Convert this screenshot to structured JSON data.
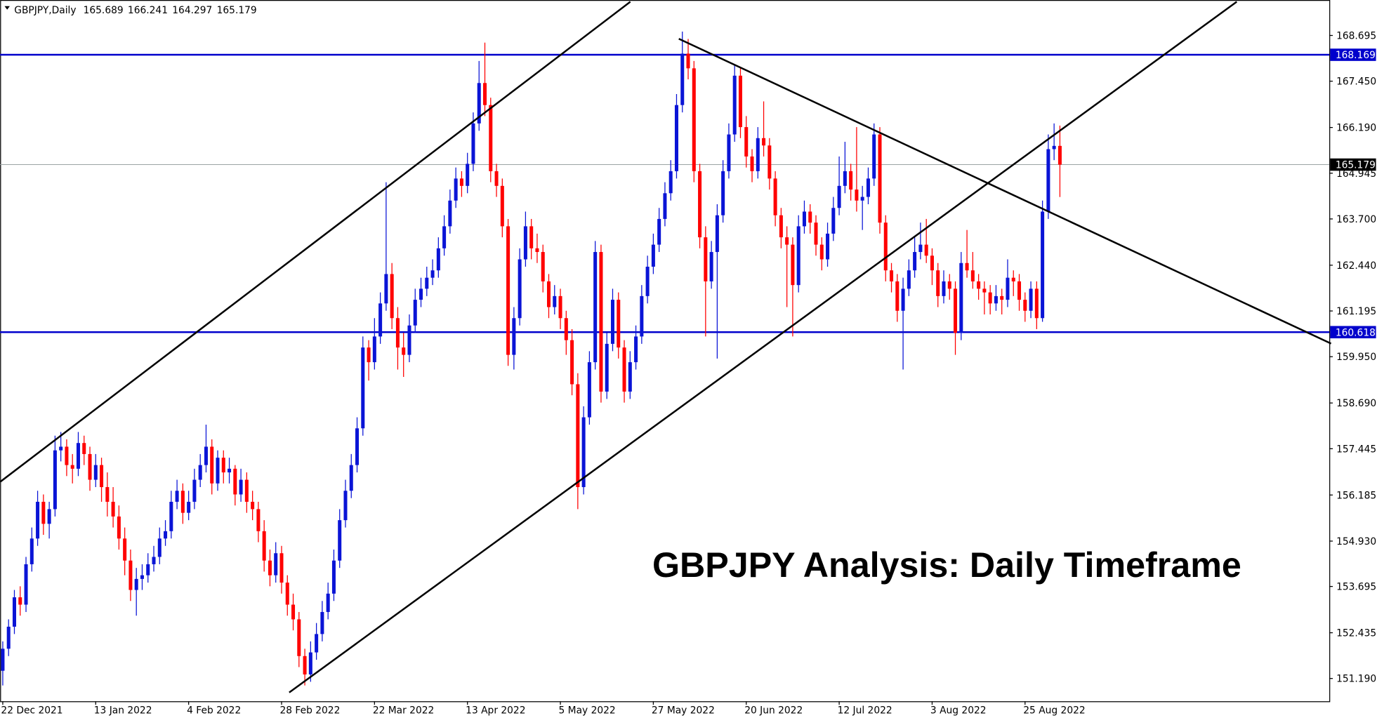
{
  "chart_data": {
    "type": "candlestick",
    "symbol": "GBPJPY,Daily",
    "annotation": "GBPJPY Analysis: Daily Timeframe",
    "up_color": "#0a14d6",
    "down_color": "#ff0000",
    "ylim": [
      150.57,
      169.66
    ],
    "yticks": [
      168.695,
      {
        "value": 167.45,
        "label": "167.450"
      },
      {
        "value": 166.19,
        "label": "166.190"
      },
      164.945,
      {
        "value": 163.7,
        "label": "163.700"
      },
      {
        "value": 162.44,
        "label": "162.440"
      },
      161.195,
      {
        "value": 159.95,
        "label": "159.950"
      },
      {
        "value": 158.69,
        "label": "158.690"
      },
      157.445,
      156.185,
      {
        "value": 154.93,
        "label": "154.930"
      },
      153.695,
      152.435,
      {
        "value": 151.19,
        "label": "151.190"
      }
    ],
    "levels": [
      {
        "value": 168.169,
        "color": "#0000cc"
      },
      {
        "value": 160.618,
        "color": "#0000cc"
      }
    ],
    "categories": [
      "22 Dec 2021",
      null,
      null,
      null,
      null,
      null,
      null,
      null,
      null,
      null,
      null,
      null,
      null,
      null,
      null,
      null,
      "13 Jan 2022",
      null,
      null,
      null,
      null,
      null,
      null,
      null,
      null,
      null,
      null,
      null,
      null,
      null,
      null,
      null,
      "4 Feb 2022",
      null,
      null,
      null,
      null,
      null,
      null,
      null,
      null,
      null,
      null,
      null,
      null,
      null,
      null,
      null,
      "28 Feb 2022",
      null,
      null,
      null,
      null,
      null,
      null,
      null,
      null,
      null,
      null,
      null,
      null,
      null,
      null,
      null,
      "22 Mar 2022",
      null,
      null,
      null,
      null,
      null,
      null,
      null,
      null,
      null,
      null,
      null,
      null,
      null,
      null,
      null,
      "13 Apr 2022",
      null,
      null,
      null,
      null,
      null,
      null,
      null,
      null,
      null,
      null,
      null,
      null,
      null,
      null,
      null,
      "5 May 2022",
      null,
      null,
      null,
      null,
      null,
      null,
      null,
      null,
      null,
      null,
      null,
      null,
      null,
      null,
      null,
      "27 May 2022",
      null,
      null,
      null,
      null,
      null,
      null,
      null,
      null,
      null,
      null,
      null,
      null,
      null,
      null,
      null,
      "20 Jun 2022",
      null,
      null,
      null,
      null,
      null,
      null,
      null,
      null,
      null,
      null,
      null,
      null,
      null,
      null,
      null,
      "12 Jul 2022",
      null,
      null,
      null,
      null,
      null,
      null,
      null,
      null,
      null,
      null,
      null,
      null,
      null,
      null,
      null,
      "3 Aug 2022",
      null,
      null,
      null,
      null,
      null,
      null,
      null,
      null,
      null,
      null,
      null,
      null,
      null,
      null,
      null,
      "25 Aug 2022",
      null,
      null,
      null,
      null,
      null,
      null
    ],
    "ohlc": [
      [
        151.4,
        152.2,
        151.0,
        152.0
      ],
      [
        152.0,
        152.8,
        151.8,
        152.6
      ],
      [
        152.6,
        153.6,
        152.4,
        153.4
      ],
      [
        153.4,
        153.7,
        152.9,
        153.2
      ],
      [
        153.2,
        154.5,
        153.0,
        154.3
      ],
      [
        154.3,
        155.3,
        154.1,
        155.0
      ],
      [
        155.0,
        156.3,
        154.8,
        156.0
      ],
      [
        156.0,
        156.2,
        155.1,
        155.4
      ],
      [
        155.4,
        156.0,
        155.0,
        155.8
      ],
      [
        155.8,
        157.8,
        155.6,
        157.4
      ],
      [
        157.4,
        157.9,
        157.1,
        157.5
      ],
      [
        157.5,
        157.7,
        156.7,
        157.0
      ],
      [
        157.0,
        157.3,
        156.5,
        156.9
      ],
      [
        156.9,
        157.9,
        156.7,
        157.6
      ],
      [
        157.6,
        157.8,
        157.0,
        157.3
      ],
      [
        157.3,
        157.5,
        156.3,
        156.6
      ],
      [
        156.6,
        157.3,
        156.4,
        157.0
      ],
      [
        157.0,
        157.2,
        156.0,
        156.4
      ],
      [
        156.4,
        156.8,
        155.6,
        156.0
      ],
      [
        156.0,
        156.4,
        155.3,
        155.6
      ],
      [
        155.6,
        155.9,
        154.7,
        155.0
      ],
      [
        155.0,
        155.3,
        154.0,
        154.4
      ],
      [
        154.4,
        154.7,
        153.3,
        153.6
      ],
      [
        153.6,
        154.2,
        152.9,
        153.9
      ],
      [
        153.9,
        154.3,
        153.6,
        154.0
      ],
      [
        154.0,
        154.6,
        153.8,
        154.3
      ],
      [
        154.3,
        154.8,
        154.1,
        154.5
      ],
      [
        154.5,
        155.3,
        154.3,
        155.0
      ],
      [
        155.0,
        155.5,
        154.8,
        155.2
      ],
      [
        155.2,
        156.3,
        155.0,
        156.0
      ],
      [
        156.0,
        156.6,
        155.8,
        156.3
      ],
      [
        156.3,
        156.5,
        155.4,
        155.7
      ],
      [
        155.7,
        156.3,
        155.5,
        156.0
      ],
      [
        156.0,
        156.9,
        155.8,
        156.6
      ],
      [
        156.6,
        157.3,
        156.4,
        157.0
      ],
      [
        157.0,
        158.1,
        156.8,
        157.5
      ],
      [
        157.5,
        157.7,
        156.2,
        156.5
      ],
      [
        156.5,
        157.4,
        156.3,
        157.2
      ],
      [
        157.2,
        157.4,
        156.5,
        156.8
      ],
      [
        156.8,
        157.2,
        156.5,
        156.9
      ],
      [
        156.9,
        157.0,
        155.9,
        156.2
      ],
      [
        156.2,
        156.9,
        156.0,
        156.6
      ],
      [
        156.6,
        156.8,
        155.7,
        156.0
      ],
      [
        156.0,
        156.3,
        155.5,
        155.8
      ],
      [
        155.8,
        156.0,
        154.9,
        155.2
      ],
      [
        155.2,
        155.5,
        154.1,
        154.4
      ],
      [
        154.4,
        154.7,
        153.7,
        154.0
      ],
      [
        154.0,
        154.9,
        153.8,
        154.6
      ],
      [
        154.6,
        154.8,
        153.5,
        153.8
      ],
      [
        153.8,
        154.0,
        152.9,
        153.2
      ],
      [
        153.2,
        153.5,
        152.5,
        152.8
      ],
      [
        152.8,
        153.0,
        151.5,
        151.8
      ],
      [
        151.8,
        152.0,
        151.0,
        151.3
      ],
      [
        151.3,
        152.2,
        151.1,
        151.9
      ],
      [
        151.9,
        152.7,
        151.7,
        152.4
      ],
      [
        152.4,
        153.3,
        152.2,
        153.0
      ],
      [
        153.0,
        153.8,
        152.8,
        153.5
      ],
      [
        153.5,
        154.7,
        153.3,
        154.4
      ],
      [
        154.4,
        155.8,
        154.2,
        155.5
      ],
      [
        155.5,
        156.6,
        155.3,
        156.3
      ],
      [
        156.3,
        157.3,
        156.1,
        157.0
      ],
      [
        157.0,
        158.3,
        156.8,
        158.0
      ],
      [
        158.0,
        160.5,
        157.8,
        160.2
      ],
      [
        160.2,
        160.4,
        159.3,
        159.8
      ],
      [
        159.8,
        161.0,
        159.6,
        160.5
      ],
      [
        160.5,
        161.7,
        160.3,
        161.4
      ],
      [
        161.4,
        164.7,
        161.2,
        162.2
      ],
      [
        162.2,
        162.5,
        160.7,
        161.0
      ],
      [
        161.0,
        161.3,
        159.6,
        160.2
      ],
      [
        160.2,
        160.6,
        159.4,
        160.0
      ],
      [
        160.0,
        161.1,
        159.8,
        160.8
      ],
      [
        160.8,
        161.8,
        160.6,
        161.5
      ],
      [
        161.5,
        162.1,
        161.3,
        161.8
      ],
      [
        161.8,
        162.4,
        161.6,
        162.1
      ],
      [
        162.1,
        162.6,
        161.9,
        162.3
      ],
      [
        162.3,
        163.2,
        162.1,
        162.9
      ],
      [
        162.9,
        163.8,
        162.7,
        163.5
      ],
      [
        163.5,
        164.5,
        163.3,
        164.2
      ],
      [
        164.2,
        165.1,
        164.0,
        164.8
      ],
      [
        164.8,
        165.0,
        164.3,
        164.6
      ],
      [
        164.6,
        165.5,
        164.4,
        165.2
      ],
      [
        165.2,
        166.6,
        165.0,
        166.3
      ],
      [
        166.3,
        168.0,
        166.1,
        167.4
      ],
      [
        167.4,
        168.5,
        166.5,
        166.8
      ],
      [
        166.8,
        167.0,
        164.7,
        165.0
      ],
      [
        165.0,
        165.2,
        164.3,
        164.6
      ],
      [
        164.6,
        164.8,
        163.2,
        163.5
      ],
      [
        163.5,
        163.7,
        159.7,
        160.0
      ],
      [
        160.0,
        161.3,
        159.6,
        161.0
      ],
      [
        161.0,
        162.9,
        160.8,
        162.6
      ],
      [
        162.6,
        163.9,
        162.4,
        163.5
      ],
      [
        163.5,
        163.7,
        162.6,
        162.9
      ],
      [
        162.9,
        163.3,
        162.5,
        162.8
      ],
      [
        162.8,
        163.0,
        161.7,
        162.0
      ],
      [
        162.0,
        162.2,
        161.0,
        161.3
      ],
      [
        161.3,
        161.9,
        161.1,
        161.6
      ],
      [
        161.6,
        161.8,
        160.7,
        161.0
      ],
      [
        161.0,
        161.2,
        160.0,
        160.4
      ],
      [
        160.4,
        160.7,
        158.9,
        159.2
      ],
      [
        159.2,
        159.5,
        155.8,
        156.4
      ],
      [
        156.4,
        158.6,
        156.2,
        158.3
      ],
      [
        158.3,
        160.1,
        158.1,
        159.8
      ],
      [
        159.8,
        163.1,
        159.6,
        162.8
      ],
      [
        162.8,
        163.0,
        158.7,
        159.0
      ],
      [
        159.0,
        160.6,
        158.8,
        160.3
      ],
      [
        160.3,
        161.8,
        160.1,
        161.5
      ],
      [
        161.5,
        161.7,
        159.9,
        160.2
      ],
      [
        160.2,
        160.4,
        158.7,
        159.0
      ],
      [
        159.0,
        160.1,
        158.8,
        159.8
      ],
      [
        159.8,
        160.8,
        159.6,
        160.5
      ],
      [
        160.5,
        161.9,
        160.3,
        161.6
      ],
      [
        161.6,
        162.7,
        161.4,
        162.4
      ],
      [
        162.4,
        163.3,
        162.2,
        163.0
      ],
      [
        163.0,
        164.0,
        162.8,
        163.7
      ],
      [
        163.7,
        164.7,
        163.5,
        164.4
      ],
      [
        164.4,
        165.3,
        164.2,
        165.0
      ],
      [
        165.0,
        167.1,
        164.8,
        166.8
      ],
      [
        166.8,
        168.8,
        166.6,
        168.2
      ],
      [
        168.2,
        168.6,
        167.5,
        167.8
      ],
      [
        167.8,
        168.0,
        164.7,
        165.0
      ],
      [
        165.0,
        165.2,
        162.9,
        163.2
      ],
      [
        163.2,
        163.5,
        160.5,
        162.0
      ],
      [
        162.0,
        163.1,
        161.8,
        162.8
      ],
      [
        162.8,
        164.1,
        159.9,
        163.8
      ],
      [
        163.8,
        165.3,
        163.6,
        165.0
      ],
      [
        165.0,
        166.3,
        164.8,
        166.0
      ],
      [
        166.0,
        167.9,
        165.8,
        167.6
      ],
      [
        167.6,
        167.8,
        165.9,
        166.2
      ],
      [
        166.2,
        166.5,
        165.1,
        165.4
      ],
      [
        165.4,
        165.6,
        164.7,
        165.0
      ],
      [
        165.0,
        166.2,
        164.8,
        165.9
      ],
      [
        165.9,
        166.9,
        165.4,
        165.7
      ],
      [
        165.7,
        165.9,
        164.5,
        164.8
      ],
      [
        164.8,
        165.0,
        163.5,
        163.8
      ],
      [
        163.8,
        164.0,
        162.9,
        163.2
      ],
      [
        163.2,
        163.5,
        161.3,
        163.0
      ],
      [
        163.0,
        163.2,
        160.5,
        161.9
      ],
      [
        161.9,
        163.8,
        161.7,
        163.5
      ],
      [
        163.5,
        164.2,
        163.3,
        163.9
      ],
      [
        163.9,
        164.1,
        163.3,
        163.6
      ],
      [
        163.6,
        163.8,
        162.7,
        163.0
      ],
      [
        163.0,
        163.2,
        162.3,
        162.6
      ],
      [
        162.6,
        163.6,
        162.4,
        163.3
      ],
      [
        163.3,
        164.3,
        163.1,
        164.0
      ],
      [
        164.0,
        165.4,
        163.8,
        164.6
      ],
      [
        164.6,
        165.8,
        164.4,
        165.0
      ],
      [
        165.0,
        165.2,
        164.2,
        164.5
      ],
      [
        164.5,
        166.2,
        163.9,
        164.2
      ],
      [
        164.2,
        164.6,
        163.4,
        164.3
      ],
      [
        164.3,
        165.1,
        164.1,
        164.8
      ],
      [
        164.8,
        166.3,
        164.6,
        166.0
      ],
      [
        166.0,
        166.2,
        163.3,
        163.6
      ],
      [
        163.6,
        163.8,
        162.0,
        162.3
      ],
      [
        162.3,
        162.5,
        161.7,
        162.0
      ],
      [
        162.0,
        162.2,
        160.9,
        161.2
      ],
      [
        161.2,
        162.1,
        159.6,
        161.8
      ],
      [
        161.8,
        162.6,
        161.6,
        162.3
      ],
      [
        162.3,
        163.2,
        162.1,
        162.8
      ],
      [
        162.8,
        163.6,
        162.6,
        163.0
      ],
      [
        163.0,
        163.7,
        162.5,
        162.7
      ],
      [
        162.7,
        162.9,
        161.9,
        162.3
      ],
      [
        162.3,
        162.5,
        161.3,
        161.6
      ],
      [
        161.6,
        162.3,
        161.4,
        162.0
      ],
      [
        162.0,
        162.2,
        161.5,
        161.8
      ],
      [
        161.8,
        162.0,
        160.0,
        160.6
      ],
      [
        160.6,
        162.8,
        160.4,
        162.5
      ],
      [
        162.5,
        163.4,
        162.1,
        162.3
      ],
      [
        162.3,
        162.8,
        161.8,
        162.0
      ],
      [
        162.0,
        162.2,
        161.5,
        161.8
      ],
      [
        161.8,
        162.0,
        161.1,
        161.7
      ],
      [
        161.7,
        161.9,
        161.1,
        161.4
      ],
      [
        161.4,
        161.9,
        161.2,
        161.6
      ],
      [
        161.6,
        161.8,
        161.1,
        161.5
      ],
      [
        161.5,
        162.6,
        161.3,
        162.1
      ],
      [
        162.1,
        162.3,
        161.6,
        162.0
      ],
      [
        162.0,
        162.2,
        161.2,
        161.5
      ],
      [
        161.5,
        161.7,
        160.9,
        161.2
      ],
      [
        161.2,
        162.0,
        161.0,
        161.8
      ],
      [
        161.8,
        162.0,
        160.7,
        161.0
      ],
      [
        161.0,
        164.2,
        160.9,
        163.9
      ],
      [
        163.9,
        166.0,
        163.7,
        165.6
      ],
      [
        165.6,
        166.3,
        165.3,
        165.689
      ],
      [
        165.689,
        166.241,
        164.297,
        165.179
      ]
    ]
  }
}
